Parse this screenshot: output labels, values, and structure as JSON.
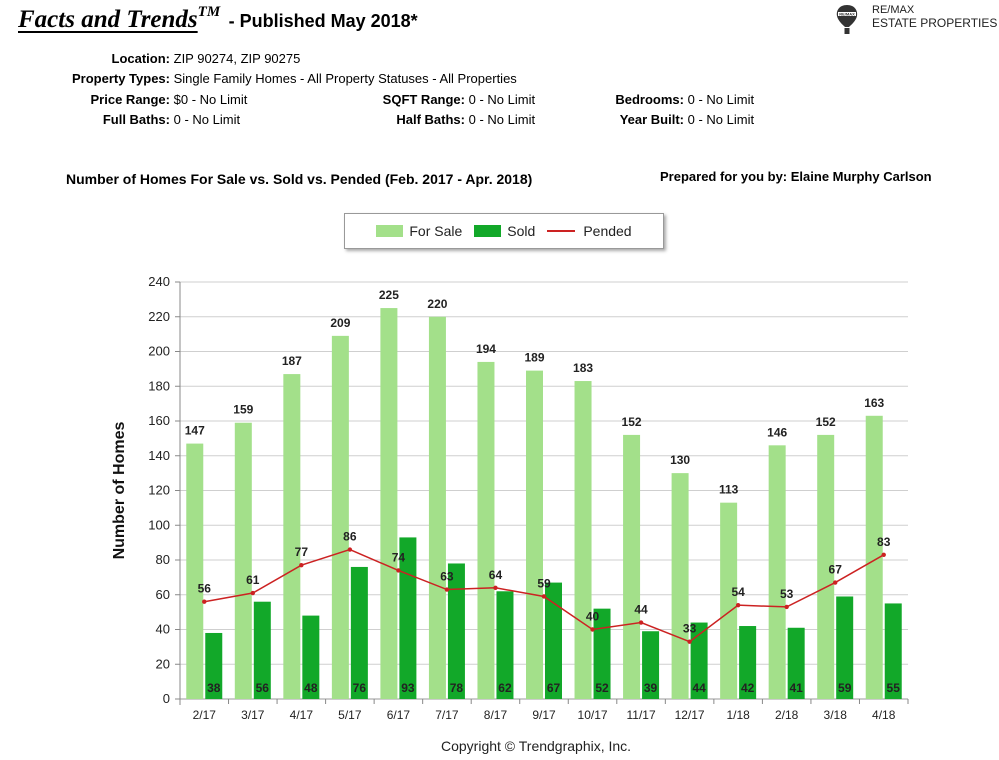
{
  "header": {
    "title": "Facts and Trends",
    "title_tm": "TM",
    "subtitle": "- Published May 2018*",
    "brand_line1": "RE/MAX",
    "brand_line2": "ESTATE PROPERTIES",
    "brand_balloon_text": "RE/MAX"
  },
  "filters": {
    "location_label": "Location:",
    "location_value": "ZIP 90274, ZIP 90275",
    "property_types_label": "Property Types:",
    "property_types_value": "Single Family Homes - All Property Statuses - All Properties",
    "price_range_label": "Price Range:",
    "price_range_value": "$0 - No Limit",
    "sqft_range_label": "SQFT Range:",
    "sqft_range_value": "0 - No Limit",
    "bedrooms_label": "Bedrooms:",
    "bedrooms_value": "0 - No Limit",
    "full_baths_label": "Full Baths:",
    "full_baths_value": "0 - No Limit",
    "half_baths_label": "Half Baths:",
    "half_baths_value": "0 - No Limit",
    "year_built_label": "Year Built:",
    "year_built_value": "0 - No Limit"
  },
  "prepared_by": "Prepared for you by: Elaine Murphy Carlson",
  "copyright": "Copyright © Trendgraphix, Inc.",
  "colors": {
    "for_sale": "#a3e08a",
    "sold": "#12a829",
    "pended": "#cc2222"
  },
  "chart_data": {
    "type": "bar",
    "title": "Number of Homes For Sale vs. Sold vs. Pended (Feb. 2017 - Apr. 2018)",
    "xlabel": "",
    "ylabel": "Number of Homes",
    "ylim": [
      0,
      240
    ],
    "yticks": [
      0,
      20,
      40,
      60,
      80,
      100,
      120,
      140,
      160,
      180,
      200,
      220,
      240
    ],
    "grid": true,
    "legend_position": "top-center",
    "categories": [
      "2/17",
      "3/17",
      "4/17",
      "5/17",
      "6/17",
      "7/17",
      "8/17",
      "9/17",
      "10/17",
      "11/17",
      "12/17",
      "1/18",
      "2/18",
      "3/18",
      "4/18"
    ],
    "series": [
      {
        "name": "For Sale",
        "type": "bar",
        "values": [
          147,
          159,
          187,
          209,
          225,
          220,
          194,
          189,
          183,
          152,
          130,
          113,
          146,
          152,
          163
        ]
      },
      {
        "name": "Sold",
        "type": "bar",
        "values": [
          38,
          56,
          48,
          76,
          93,
          78,
          62,
          67,
          52,
          39,
          44,
          42,
          41,
          59,
          55
        ]
      },
      {
        "name": "Pended",
        "type": "line",
        "values": [
          56,
          61,
          77,
          86,
          74,
          63,
          64,
          59,
          40,
          44,
          33,
          54,
          53,
          67,
          83
        ]
      }
    ]
  }
}
